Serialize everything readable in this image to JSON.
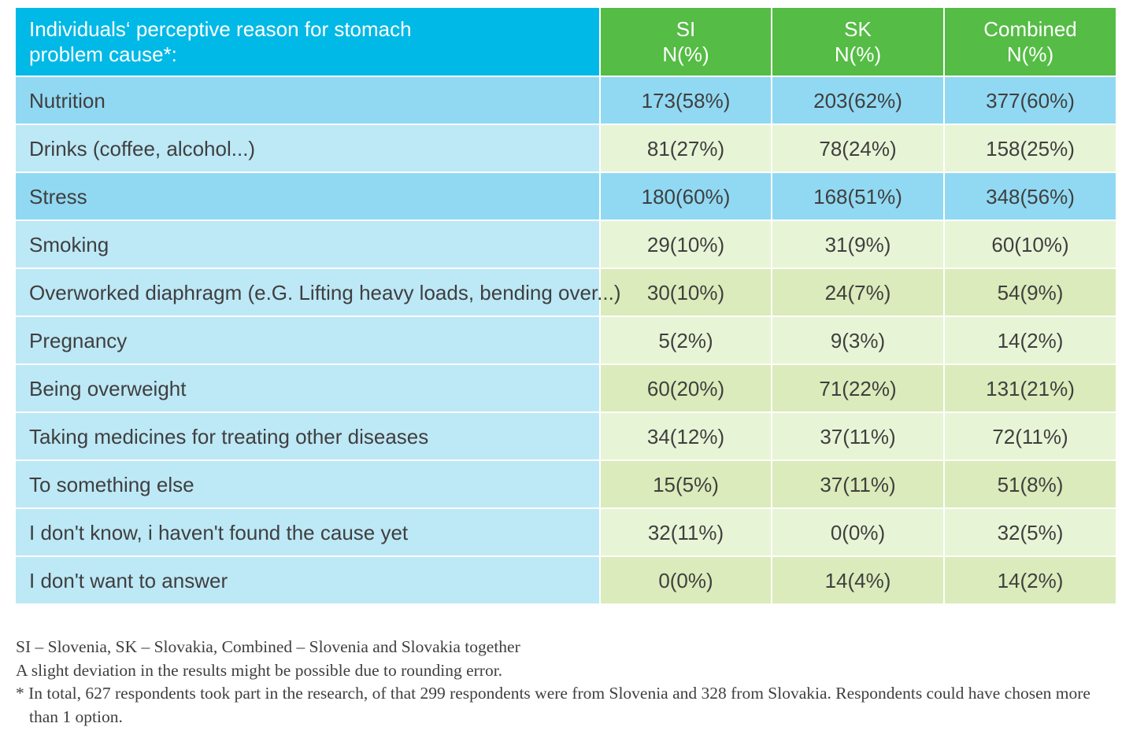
{
  "table": {
    "header": {
      "reason_line1": "Individuals‘ perceptive reason for stomach",
      "reason_line2": "problem cause*:",
      "columns": [
        {
          "name": "SI",
          "unit": "N(%)"
        },
        {
          "name": "SK",
          "unit": "N(%)"
        },
        {
          "name": "Combined",
          "unit": "N(%)"
        }
      ]
    },
    "rows": [
      {
        "label": "Nutrition",
        "si": "173(58%)",
        "sk": "203(62%)",
        "combined": "377(60%)"
      },
      {
        "label": "Drinks (coffee, alcohol...)",
        "si": "81(27%)",
        "sk": "78(24%)",
        "combined": "158(25%)"
      },
      {
        "label": "Stress",
        "si": "180(60%)",
        "sk": "168(51%)",
        "combined": "348(56%)"
      },
      {
        "label": "Smoking",
        "si": "29(10%)",
        "sk": "31(9%)",
        "combined": "60(10%)"
      },
      {
        "label": "Overworked diaphragm (e.G. Lifting heavy loads, bending over...)",
        "si": "30(10%)",
        "sk": "24(7%)",
        "combined": "54(9%)"
      },
      {
        "label": "Pregnancy",
        "si": "5(2%)",
        "sk": "9(3%)",
        "combined": "14(2%)"
      },
      {
        "label": "Being overweight",
        "si": "60(20%)",
        "sk": "71(22%)",
        "combined": "131(21%)"
      },
      {
        "label": "Taking medicines for treating other diseases",
        "si": "34(12%)",
        "sk": "37(11%)",
        "combined": "72(11%)"
      },
      {
        "label": "To something else",
        "si": "15(5%)",
        "sk": "37(11%)",
        "combined": "51(8%)"
      },
      {
        "label": "I don't know, i haven't found the cause yet",
        "si": "32(11%)",
        "sk": "0(0%)",
        "combined": "32(5%)"
      },
      {
        "label": "I don't want to answer",
        "si": "0(0%)",
        "sk": "14(4%)",
        "combined": "14(2%)"
      }
    ]
  },
  "notes": {
    "abbreviations": "SI – Slovenia, SK – Slovakia, Combined – Slovenia and Slovakia together",
    "rounding": "A slight deviation in the results might be possible due to rounding error.",
    "footnote": "* In total, 627 respondents took part in the research, of that 299 respondents were from Slovenia and 328 from Slovakia. Respondents could have chosen more than 1 option."
  },
  "colors": {
    "header_label_bg": "#00b9e6",
    "header_value_bg": "#55bc45",
    "row_dark_bg": "#91d9f3",
    "row_label_light_bg": "#bde8f6",
    "row_value_light_bg": "#e8f4d6",
    "row_value_olive_bg": "#dbebbb",
    "text": "#3f3f3f"
  }
}
